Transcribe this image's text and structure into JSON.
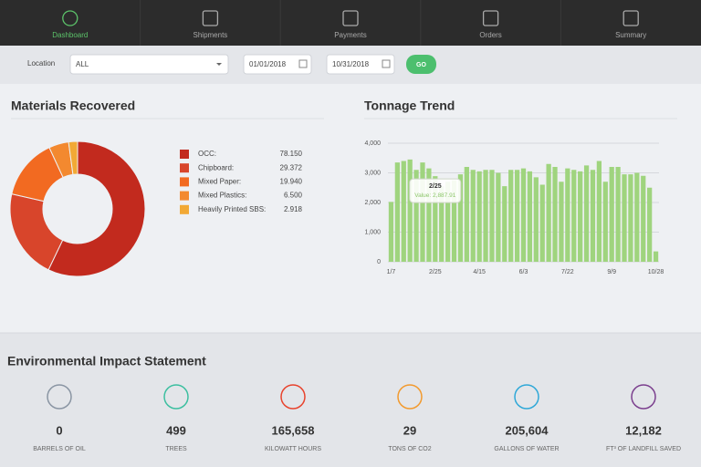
{
  "nav": {
    "items": [
      "Dashboard",
      "Shipments",
      "Payments",
      "Orders",
      "Summary"
    ],
    "active": "Dashboard"
  },
  "filters": {
    "location_label": "Location",
    "location_value": "ALL",
    "start_date": "01/01/2018",
    "end_date": "10/31/2018",
    "button": "GO"
  },
  "materials": {
    "type": "pie",
    "title": "Materials Recovered",
    "categories": [
      "OCC:",
      "Chipboard:",
      "Mixed Paper:",
      "Mixed Plastics:",
      "Heavily Printed SBS:"
    ],
    "values": [
      78.15,
      29.372,
      19.94,
      6.5,
      2.918
    ],
    "value_labels": [
      "78.150",
      "29.372",
      "19.940",
      "6.500",
      "2.918"
    ],
    "colors": [
      "#c22a1e",
      "#d8452b",
      "#f26a21",
      "#f3892f",
      "#f2a935"
    ]
  },
  "tonnage": {
    "type": "bar",
    "title": "Tonnage Trend",
    "color": "#9fd47e",
    "categories": [
      "1/7",
      null,
      null,
      null,
      null,
      null,
      null,
      "2/25",
      null,
      null,
      null,
      null,
      null,
      null,
      "4/15",
      null,
      null,
      null,
      null,
      null,
      null,
      "6/3",
      null,
      null,
      null,
      null,
      null,
      null,
      "7/22",
      null,
      null,
      null,
      null,
      null,
      null,
      "9/9",
      null,
      null,
      null,
      null,
      null,
      null,
      "10/28"
    ],
    "values": [
      2020,
      3350,
      3400,
      3450,
      3100,
      3350,
      3150,
      2887.91,
      2550,
      2700,
      2750,
      2950,
      3200,
      3100,
      3050,
      3100,
      3100,
      3000,
      2550,
      3100,
      3100,
      3150,
      3050,
      2850,
      2600,
      3300,
      3200,
      2700,
      3150,
      3100,
      3050,
      3250,
      3100,
      3400,
      2700,
      3200,
      3200,
      2950,
      2950,
      3000,
      2900,
      2500,
      350
    ],
    "ylim": [
      0,
      4000
    ],
    "yticks": [
      0,
      {
        "value": 1000,
        "label": "1,000"
      },
      {
        "value": 2000,
        "label": "2,000"
      },
      {
        "value": 3000,
        "label": "3,000"
      },
      {
        "value": 4000,
        "label": "4,000"
      }
    ],
    "grid": true,
    "tooltip": {
      "title": "2/25",
      "text": "Value: 2,887.91"
    }
  },
  "impact": {
    "title": "Environmental Impact Statement",
    "items": [
      {
        "value": "0",
        "label": "BARRELS OF OIL"
      },
      {
        "value": "499",
        "label": "TREES"
      },
      {
        "value": "165,658",
        "label": "KILOWATT HOURS"
      },
      {
        "value": "29",
        "label": "TONS OF CO2"
      },
      {
        "value": "205,604",
        "label": "GALLONS OF WATER"
      },
      {
        "value": "12,182",
        "label": "FT³ OF LANDFILL SAVED"
      }
    ]
  }
}
